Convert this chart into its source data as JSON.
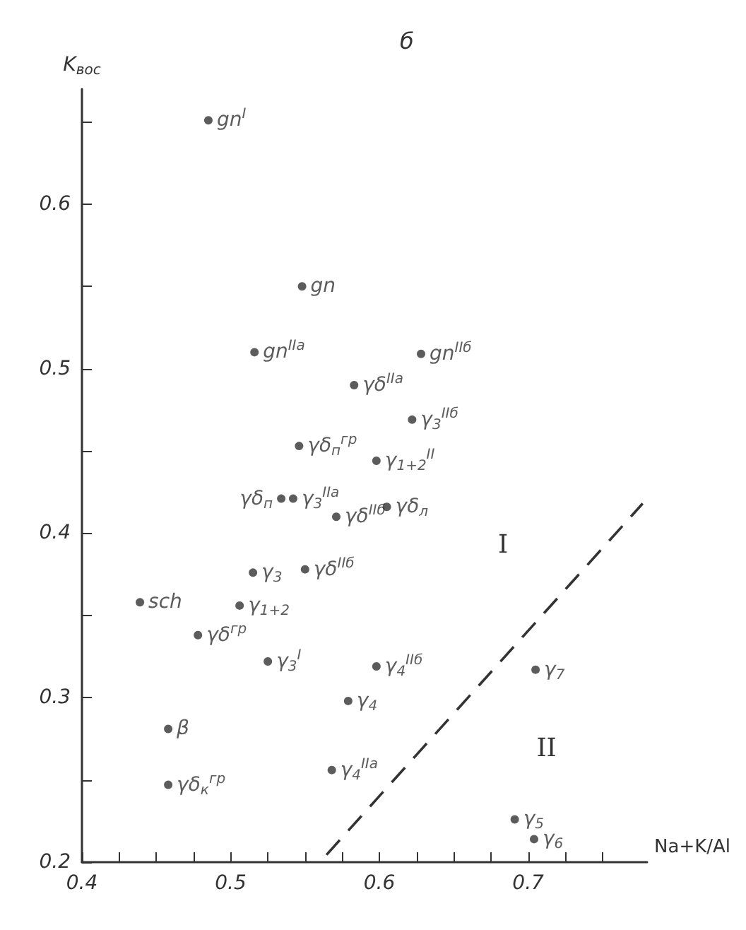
{
  "chart_data": {
    "type": "scatter",
    "title": "б",
    "xlabel": "Na+K/Al",
    "ylabel": "K$_{вос}$",
    "xlim": [
      0.4,
      0.78
    ],
    "ylim": [
      0.2,
      0.67
    ],
    "xticks": [
      0.4,
      {
        "value": 0.425,
        "label": null
      },
      {
        "value": 0.45,
        "label": null
      },
      {
        "value": 0.475,
        "label": null
      },
      0.5,
      {
        "value": 0.525,
        "label": null
      },
      {
        "value": 0.55,
        "label": null
      },
      {
        "value": 0.575,
        "label": null
      },
      0.6,
      {
        "value": 0.625,
        "label": null
      },
      {
        "value": 0.65,
        "label": null
      },
      {
        "value": 0.675,
        "label": null
      },
      0.7,
      {
        "value": 0.725,
        "label": null
      },
      {
        "value": 0.75,
        "label": null
      }
    ],
    "yticks": [
      0.2,
      {
        "value": 0.25,
        "label": null
      },
      0.3,
      {
        "value": 0.35,
        "label": null
      },
      0.4,
      {
        "value": 0.45,
        "label": null
      },
      0.5,
      {
        "value": 0.55,
        "label": null
      },
      0.6,
      {
        "value": 0.65,
        "label": null
      }
    ],
    "grid": false,
    "legend": false,
    "marker": "circle",
    "annotations": [
      "I",
      "II"
    ],
    "series": [
      {
        "name": "gn$^{I}$",
        "color": "#333333",
        "x": [
          0.485
        ],
        "values": [
          0.651
        ]
      },
      {
        "name": "gn",
        "color": "#333333",
        "x": [
          0.548
        ],
        "values": [
          0.55
        ]
      },
      {
        "name": "gn$^{IIa}$",
        "color": "#333333",
        "x": [
          0.516
        ],
        "values": [
          0.51
        ]
      },
      {
        "name": "gn$^{IIб}$",
        "color": "#333333",
        "x": [
          0.628
        ],
        "values": [
          0.509
        ]
      },
      {
        "name": "γδ$^{IIa}$",
        "color": "#333333",
        "x": [
          0.583
        ],
        "values": [
          0.49
        ]
      },
      {
        "name": "γ$_{3}$$^{IIб}$",
        "color": "#333333",
        "x": [
          0.622
        ],
        "values": [
          0.469
        ]
      },
      {
        "name": "γδ$_{п}$$^{гр}$",
        "color": "#333333",
        "x": [
          0.546
        ],
        "values": [
          0.453
        ]
      },
      {
        "name": "γ$_{1+2}$$^{II}$",
        "color": "#333333",
        "x": [
          0.598
        ],
        "values": [
          0.444
        ]
      },
      {
        "name": "γδ$_{п}$",
        "color": "#333333",
        "x": [
          0.534
        ],
        "values": [
          0.421
        ]
      },
      {
        "name": "γ$_{3}$$^{IIa}$",
        "color": "#333333",
        "x": [
          0.542
        ],
        "values": [
          0.421
        ]
      },
      {
        "name": "γδ$^{IIб}$",
        "color": "#333333",
        "x": [
          0.571
        ],
        "values": [
          0.41
        ]
      },
      {
        "name": "γδ$_{л}$",
        "color": "#333333",
        "x": [
          0.605
        ],
        "values": [
          0.416
        ]
      },
      {
        "name": "γ$_{3}$",
        "color": "#333333",
        "x": [
          0.515
        ],
        "values": [
          0.376
        ]
      },
      {
        "name": "γδ$^{IIб}$",
        "color": "#333333",
        "x": [
          0.55
        ],
        "values": [
          0.378
        ]
      },
      {
        "name": "sch",
        "color": "#333333",
        "x": [
          0.439
        ],
        "values": [
          0.358
        ]
      },
      {
        "name": "γ$_{1+2}$",
        "color": "#333333",
        "x": [
          0.506
        ],
        "values": [
          0.356
        ]
      },
      {
        "name": "γδ$^{гр}$",
        "color": "#333333",
        "x": [
          0.478
        ],
        "values": [
          0.338
        ]
      },
      {
        "name": "γ$_{3}$$^{I}$",
        "color": "#333333",
        "x": [
          0.525
        ],
        "values": [
          0.322
        ]
      },
      {
        "name": "γ$_{4}$$^{IIб}$",
        "color": "#333333",
        "x": [
          0.598
        ],
        "values": [
          0.319
        ]
      },
      {
        "name": "γ$_{4}$",
        "color": "#333333",
        "x": [
          0.579
        ],
        "values": [
          0.298
        ]
      },
      {
        "name": "β",
        "color": "#333333",
        "x": [
          0.458
        ],
        "values": [
          0.281
        ]
      },
      {
        "name": "γ$_{4}$$^{IIa}$",
        "color": "#333333",
        "x": [
          0.568
        ],
        "values": [
          0.256
        ]
      },
      {
        "name": "γδ$_{к}$$^{гр}$",
        "color": "#333333",
        "x": [
          0.458
        ],
        "values": [
          0.247
        ]
      },
      {
        "name": "γ$_{7}$",
        "color": "#333333",
        "x": [
          0.705
        ],
        "values": [
          0.317
        ]
      },
      {
        "name": "γ$_{5}$",
        "color": "#333333",
        "x": [
          0.691
        ],
        "values": [
          0.226
        ]
      },
      {
        "name": "γ$_{6}$",
        "color": "#333333",
        "x": [
          0.704
        ],
        "values": [
          0.214
        ]
      },
      {
        "type": "line",
        "color": "#333333",
        "line_style": "dashed",
        "marker": "none",
        "x": [
          0.56,
          0.777
        ],
        "values": [
          0.2,
          0.418
        ]
      }
    ]
  }
}
